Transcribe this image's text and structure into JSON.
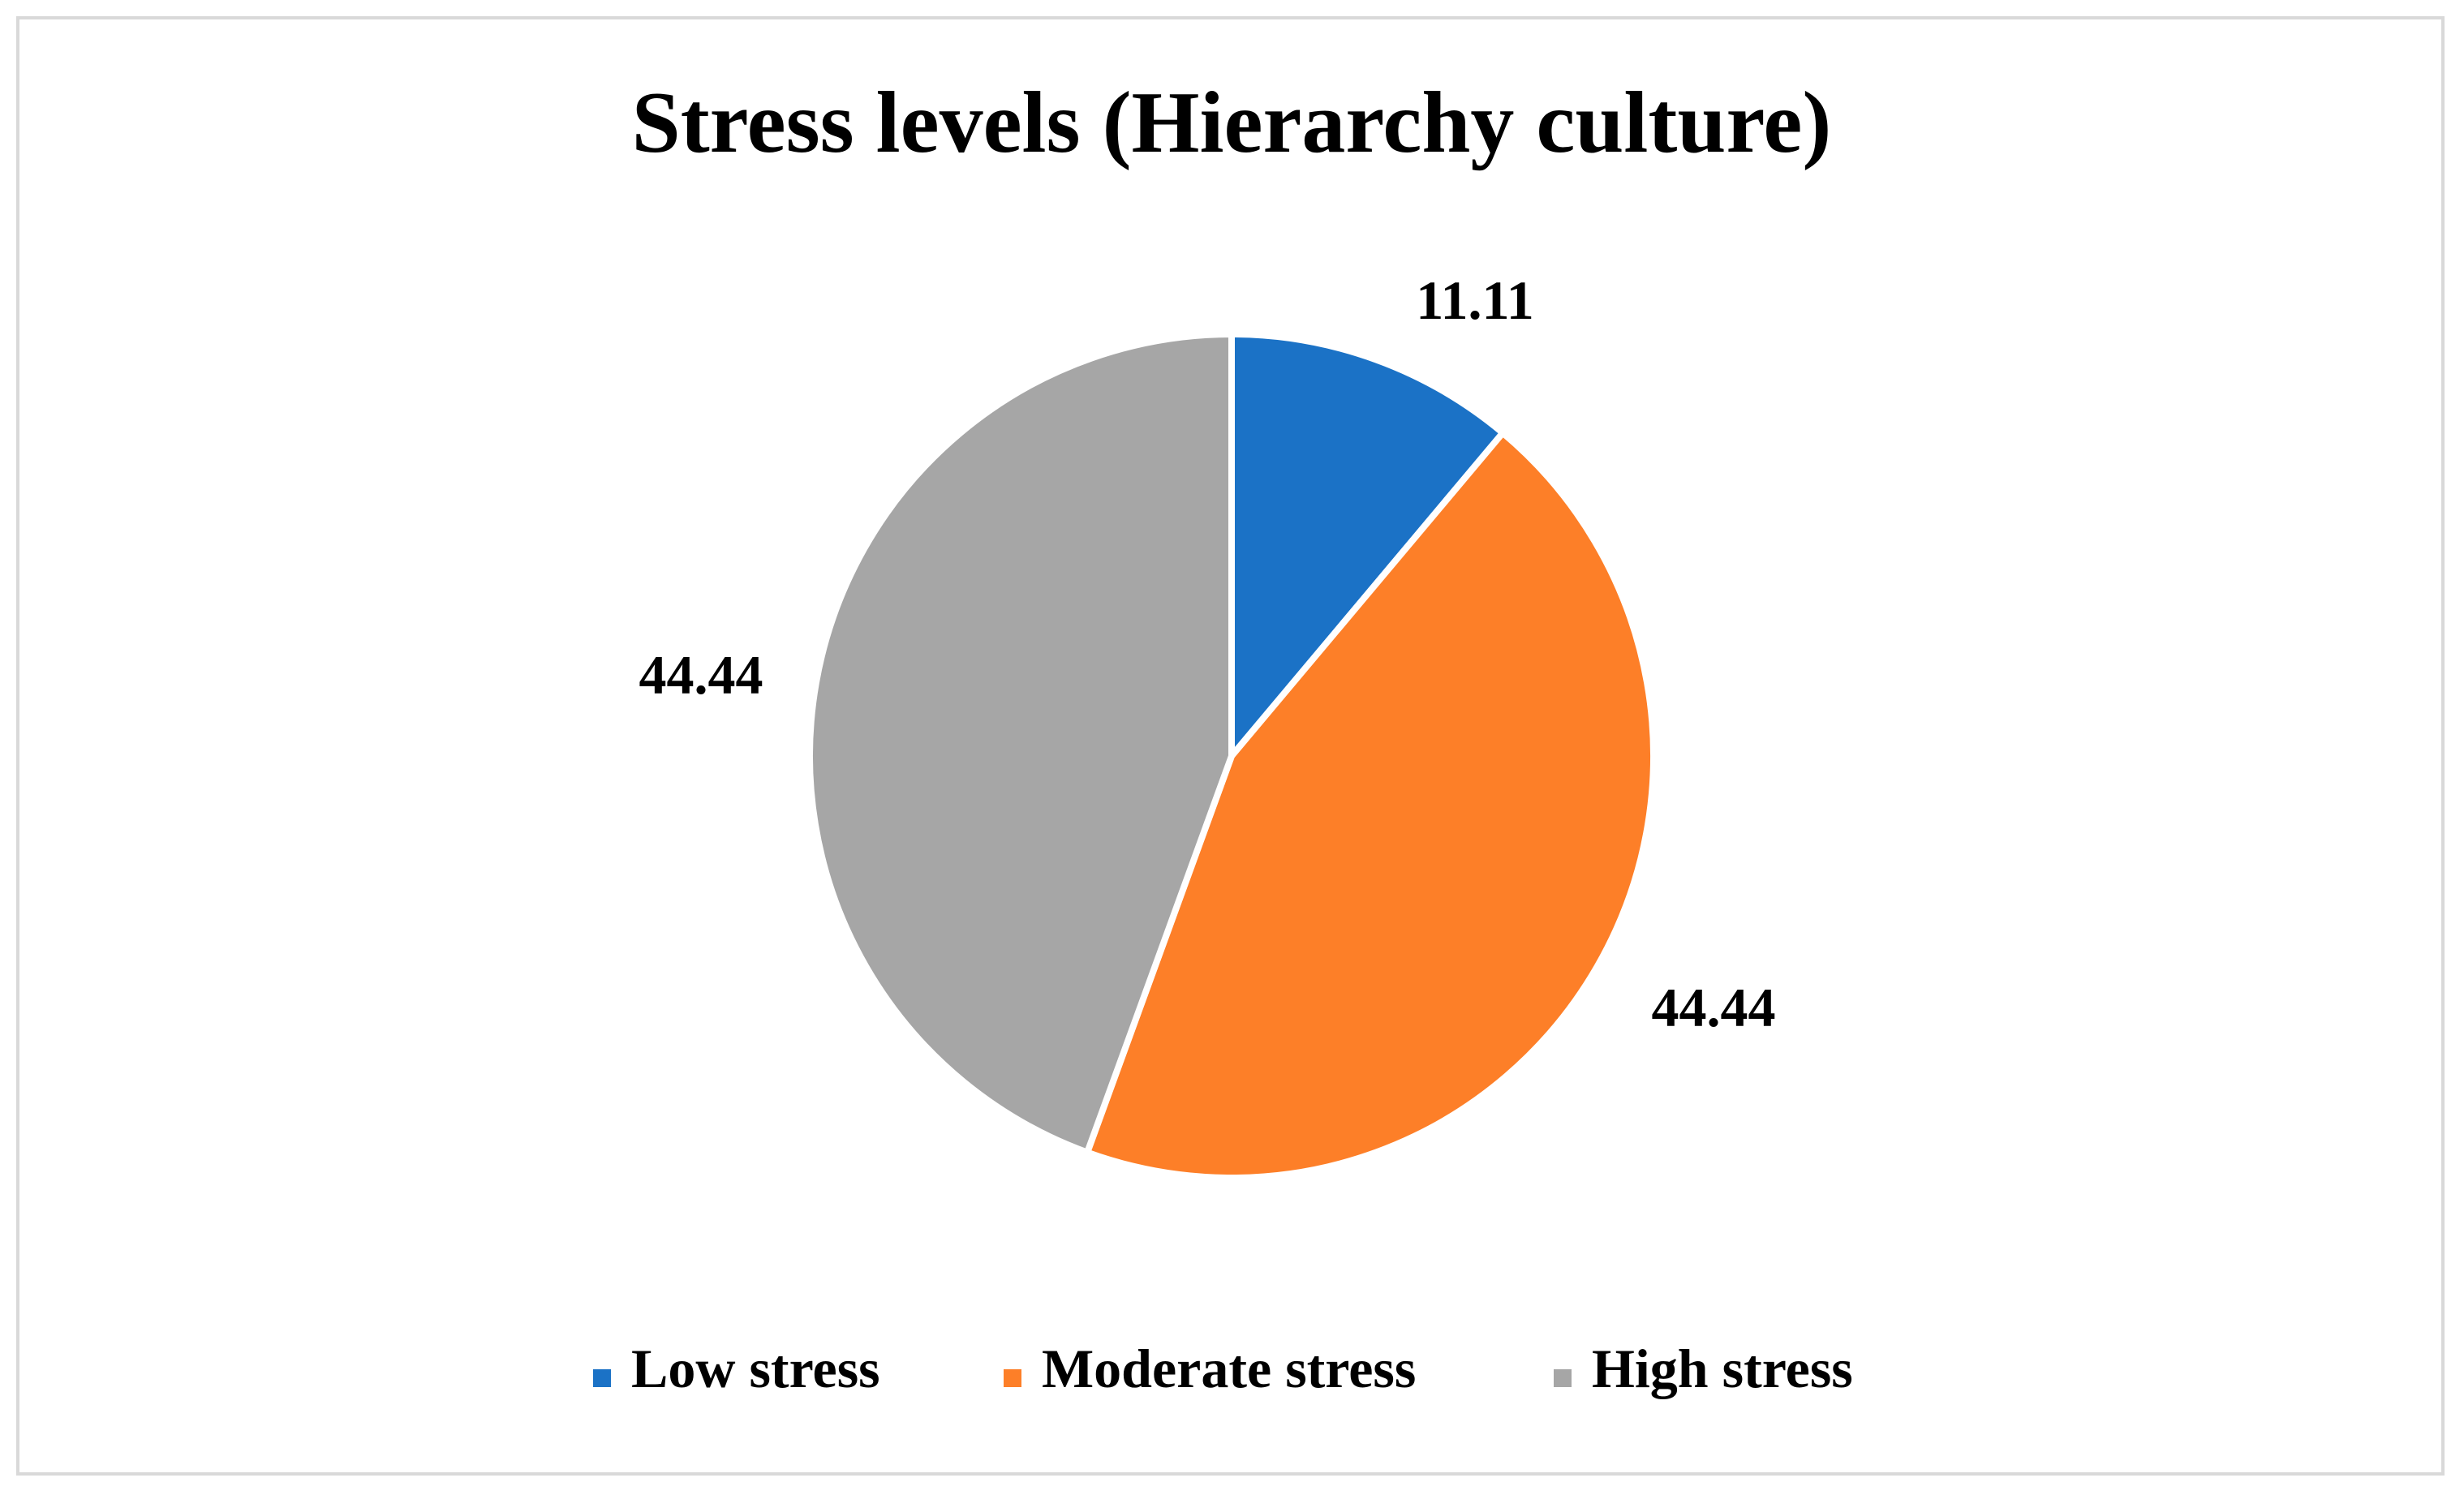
{
  "chart_data": {
    "type": "pie",
    "title": "Stress levels (Hierarchy culture)",
    "categories": [
      "Low stress",
      "Moderate stress",
      "High stress"
    ],
    "values": [
      11.11,
      44.44,
      44.44
    ],
    "data_labels": [
      "11.11",
      "44.44",
      "44.44"
    ],
    "colors": [
      "#1b72c6",
      "#fd7f28",
      "#a6a6a6"
    ],
    "start_angle_deg": 0,
    "direction": "clockwise",
    "legend_position": "bottom"
  }
}
